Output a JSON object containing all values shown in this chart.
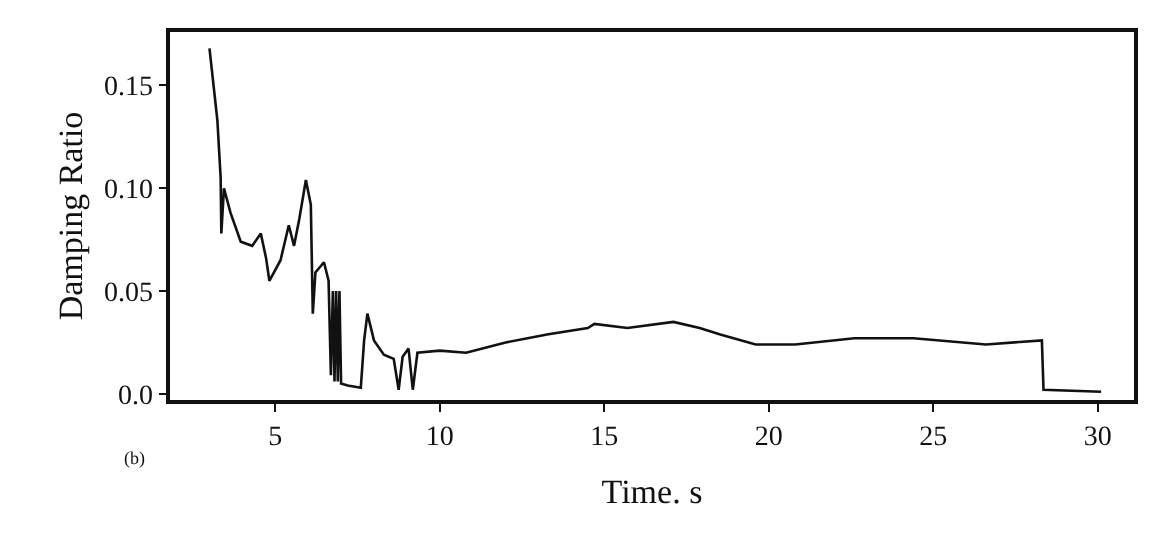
{
  "chart_data": {
    "type": "line",
    "xlabel": "Time. s",
    "ylabel": "Damping Ratio",
    "annotations": [
      "(b)"
    ],
    "x": [
      3.0,
      3.24,
      3.34,
      3.36,
      3.44,
      3.64,
      3.95,
      4.3,
      4.56,
      4.72,
      4.82,
      5.16,
      5.41,
      5.57,
      5.73,
      5.93,
      6.08,
      6.14,
      6.22,
      6.48,
      6.62,
      6.69,
      6.75,
      6.8,
      6.85,
      6.9,
      6.95,
      7.0,
      7.2,
      7.6,
      7.7,
      7.8,
      8.0,
      8.3,
      8.6,
      8.75,
      8.87,
      9.05,
      9.18,
      9.32,
      10.0,
      10.8,
      12.0,
      13.3,
      14.5,
      14.7,
      15.7,
      17.1,
      17.9,
      18.5,
      19.6,
      20.8,
      22.6,
      24.4,
      26.6,
      28.3,
      28.35,
      30.1
    ],
    "series": [
      {
        "color": "#111111",
        "values": [
          0.168,
          0.133,
          0.105,
          0.078,
          0.1,
          0.088,
          0.074,
          0.072,
          0.078,
          0.066,
          0.055,
          0.065,
          0.082,
          0.072,
          0.085,
          0.104,
          0.092,
          0.039,
          0.059,
          0.064,
          0.055,
          0.009,
          0.05,
          0.006,
          0.05,
          0.006,
          0.05,
          0.005,
          0.004,
          0.003,
          0.026,
          0.039,
          0.026,
          0.019,
          0.017,
          0.002,
          0.018,
          0.022,
          0.002,
          0.02,
          0.021,
          0.02,
          0.025,
          0.029,
          0.032,
          0.034,
          0.032,
          0.035,
          0.032,
          0.029,
          0.024,
          0.024,
          0.027,
          0.027,
          0.024,
          0.026,
          0.002,
          0.001
        ]
      }
    ],
    "xlim": [
      1.8,
      31.1
    ],
    "xticks": [
      5,
      10,
      15,
      20,
      25,
      30
    ],
    "ylim": [
      -0.003,
      0.176
    ],
    "yticks": [
      {
        "value": 0,
        "label": "0.0"
      },
      {
        "value": 0.05,
        "label": "0.05"
      },
      {
        "value": 0.1,
        "label": "0.10"
      },
      {
        "value": 0.15,
        "label": "0.15"
      }
    ],
    "grid": false,
    "marker": "none",
    "line_style": "solid"
  }
}
